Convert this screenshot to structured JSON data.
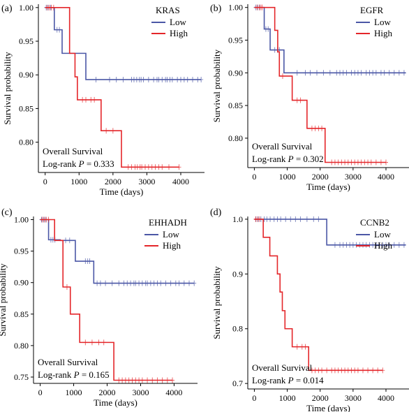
{
  "chart_data": [
    {
      "panel_label": "(a)",
      "type": "line",
      "legend_title": "KRAS",
      "legend_position": "top-right",
      "xlabel": "Time (days)",
      "ylabel": "Survival probability",
      "xlim": [
        -200,
        4700
      ],
      "ylim": [
        0.755,
        1.005
      ],
      "x_ticks": [
        0,
        1000,
        2000,
        3000,
        4000
      ],
      "x_tick_labels": [
        "0",
        "1000",
        "2000",
        "3000",
        "4000"
      ],
      "y_ticks": [
        1.0,
        0.95,
        0.9,
        0.85,
        0.8
      ],
      "y_tick_labels": [
        "1.00",
        "0.95",
        "0.90",
        "0.85",
        "0.80"
      ],
      "annotation_line1": "Overall Survival",
      "annotation_line2_prefix": "Log-rank",
      "p_symbol": "P",
      "p_value_text": "= 0.333",
      "grid": false,
      "series": [
        {
          "name": "Low",
          "color": "#4b57a6",
          "steps": [
            [
              0,
              1.0
            ],
            [
              270,
              0.967
            ],
            [
              500,
              0.932
            ],
            [
              1200,
              0.893
            ],
            [
              4600,
              0.893
            ]
          ],
          "censor_times": [
            30,
            90,
            160,
            350,
            420,
            1500,
            1900,
            2100,
            2300,
            2550,
            2620,
            2700,
            2780,
            2830,
            2900,
            3050,
            3200,
            3300,
            3350,
            3450,
            3550,
            3600,
            3680,
            3750,
            3900,
            4000,
            4100,
            4200,
            4350,
            4500,
            4600
          ]
        },
        {
          "name": "High",
          "color": "#e4262a",
          "steps": [
            [
              0,
              1.0
            ],
            [
              720,
              0.932
            ],
            [
              880,
              0.897
            ],
            [
              950,
              0.863
            ],
            [
              1650,
              0.817
            ],
            [
              2250,
              0.763
            ],
            [
              3950,
              0.763
            ]
          ],
          "censor_times": [
            60,
            120,
            180,
            250,
            1100,
            1200,
            1350,
            1450,
            1800,
            2000,
            2450,
            2550,
            2650,
            2720,
            2800,
            2850,
            2950,
            3050,
            3150,
            3250,
            3350,
            3450,
            3650,
            3950
          ]
        }
      ]
    },
    {
      "panel_label": "(b)",
      "type": "line",
      "legend_title": "EGFR",
      "legend_position": "top-right",
      "xlabel": "Time (days)",
      "ylabel": "Survival probability",
      "xlim": [
        -200,
        4700
      ],
      "ylim": [
        0.755,
        1.005
      ],
      "x_ticks": [
        0,
        1000,
        2000,
        3000,
        4000
      ],
      "x_tick_labels": [
        "0",
        "1000",
        "2000",
        "3000",
        "4000"
      ],
      "y_ticks": [
        1.0,
        0.95,
        0.9,
        0.85,
        0.8
      ],
      "y_tick_labels": [
        "1.00",
        "0.95",
        "0.90",
        "0.85",
        "0.80"
      ],
      "annotation_line1": "Overall Survival",
      "annotation_line2_prefix": "Log-rank",
      "p_symbol": "P",
      "p_value_text": "= 0.302",
      "grid": false,
      "series": [
        {
          "name": "Low",
          "color": "#4b57a6",
          "steps": [
            [
              0,
              1.0
            ],
            [
              300,
              0.967
            ],
            [
              480,
              0.935
            ],
            [
              900,
              0.9
            ],
            [
              4600,
              0.9
            ]
          ],
          "censor_times": [
            40,
            100,
            160,
            350,
            420,
            620,
            700,
            760,
            1300,
            1550,
            1700,
            1900,
            2100,
            2300,
            2500,
            2600,
            2700,
            2800,
            2950,
            3050,
            3150,
            3250,
            3400,
            3500,
            3600,
            3700,
            3850,
            3950,
            4100,
            4250,
            4400,
            4550
          ]
        },
        {
          "name": "High",
          "color": "#e4262a",
          "steps": [
            [
              0,
              1.0
            ],
            [
              620,
              0.965
            ],
            [
              710,
              0.932
            ],
            [
              760,
              0.895
            ],
            [
              1150,
              0.858
            ],
            [
              1600,
              0.815
            ],
            [
              2150,
              0.763
            ],
            [
              4000,
              0.763
            ]
          ],
          "censor_times": [
            80,
            150,
            200,
            240,
            860,
            1300,
            1400,
            1750,
            1850,
            1950,
            2050,
            2350,
            2450,
            2550,
            2650,
            2750,
            2850,
            2950,
            3050,
            3150,
            3250,
            3350,
            3450,
            3550,
            3700,
            3850,
            4000
          ]
        }
      ]
    },
    {
      "panel_label": "(c)",
      "type": "line",
      "legend_title": "EHHADH",
      "legend_position": "top-right",
      "xlabel": "Time (days)",
      "ylabel": "Survival probability",
      "xlim": [
        -200,
        4700
      ],
      "ylim": [
        0.74,
        1.005
      ],
      "x_ticks": [
        0,
        1000,
        2000,
        3000,
        4000
      ],
      "x_tick_labels": [
        "0",
        "1000",
        "2000",
        "3000",
        "4000"
      ],
      "y_ticks": [
        1.0,
        0.95,
        0.9,
        0.85,
        0.8,
        0.75
      ],
      "y_tick_labels": [
        "1.00",
        "0.95",
        "0.90",
        "0.85",
        "0.80",
        "0.75"
      ],
      "annotation_line1": "Overall Survival",
      "annotation_line2_prefix": "Log-rank",
      "p_symbol": "P",
      "p_value_text": "= 0.165",
      "grid": false,
      "series": [
        {
          "name": "Low",
          "color": "#4b57a6",
          "steps": [
            [
              0,
              1.0
            ],
            [
              250,
              0.968
            ],
            [
              600,
              0.967
            ],
            [
              1050,
              0.934
            ],
            [
              1600,
              0.899
            ],
            [
              4600,
              0.899
            ]
          ],
          "censor_times": [
            40,
            100,
            160,
            320,
            380,
            440,
            760,
            880,
            1350,
            1420,
            1480,
            1700,
            1800,
            1950,
            2150,
            2350,
            2500,
            2600,
            2700,
            2800,
            2850,
            2950,
            3050,
            3150,
            3200,
            3300,
            3400,
            3500,
            3600,
            3750,
            3900,
            4050,
            4150,
            4300,
            4450,
            4600
          ]
        },
        {
          "name": "High",
          "color": "#e4262a",
          "steps": [
            [
              0,
              1.0
            ],
            [
              430,
              0.967
            ],
            [
              680,
              0.893
            ],
            [
              900,
              0.85
            ],
            [
              1180,
              0.805
            ],
            [
              2200,
              0.745
            ],
            [
              3950,
              0.745
            ]
          ],
          "censor_times": [
            60,
            120,
            180,
            250,
            800,
            1350,
            1550,
            1750,
            1900,
            2350,
            2450,
            2550,
            2650,
            2750,
            2850,
            2950,
            3050,
            3200,
            3350,
            3500,
            3650,
            3800,
            3950
          ]
        }
      ]
    },
    {
      "panel_label": "(d)",
      "type": "line",
      "legend_title": "CCNB2",
      "legend_position": "top-right",
      "xlabel": "Time (days)",
      "ylabel": "Survival probability",
      "xlim": [
        -200,
        4700
      ],
      "ylim": [
        0.69,
        1.005
      ],
      "x_ticks": [
        0,
        1000,
        2000,
        3000,
        4000
      ],
      "x_tick_labels": [
        "0",
        "1000",
        "2000",
        "3000",
        "4000"
      ],
      "y_ticks": [
        1.0,
        0.9,
        0.8,
        0.7
      ],
      "y_tick_labels": [
        "1.0",
        "0.9",
        "0.8",
        "0.7"
      ],
      "annotation_line1": "Overall Survival",
      "annotation_line2_prefix": "Log-rank",
      "p_symbol": "P",
      "p_value_text": "= 0.014",
      "grid": false,
      "series": [
        {
          "name": "Low",
          "color": "#4b57a6",
          "steps": [
            [
              0,
              1.0
            ],
            [
              2200,
              0.953
            ],
            [
              4600,
              0.953
            ]
          ],
          "censor_times": [
            50,
            120,
            200,
            300,
            380,
            480,
            600,
            700,
            800,
            950,
            1100,
            1250,
            1400,
            1600,
            1800,
            1950,
            2450,
            2600,
            2700,
            2800,
            2900,
            3000,
            3100,
            3200,
            3300,
            3400,
            3500,
            3600,
            3700,
            3800,
            3900,
            4000,
            4100,
            4250,
            4400,
            4550
          ]
        },
        {
          "name": "High",
          "color": "#e4262a",
          "steps": [
            [
              0,
              1.0
            ],
            [
              270,
              0.967
            ],
            [
              470,
              0.933
            ],
            [
              700,
              0.9
            ],
            [
              780,
              0.867
            ],
            [
              850,
              0.833
            ],
            [
              930,
              0.8
            ],
            [
              1150,
              0.767
            ],
            [
              1650,
              0.724
            ],
            [
              3900,
              0.724
            ]
          ],
          "censor_times": [
            40,
            100,
            160,
            1300,
            1450,
            1550,
            1750,
            1850,
            1950,
            2050,
            2200,
            2350,
            2450,
            2550,
            2650,
            2750,
            2850,
            2950,
            3050,
            3150,
            3300,
            3450,
            3600,
            3750,
            3900
          ]
        }
      ]
    }
  ]
}
